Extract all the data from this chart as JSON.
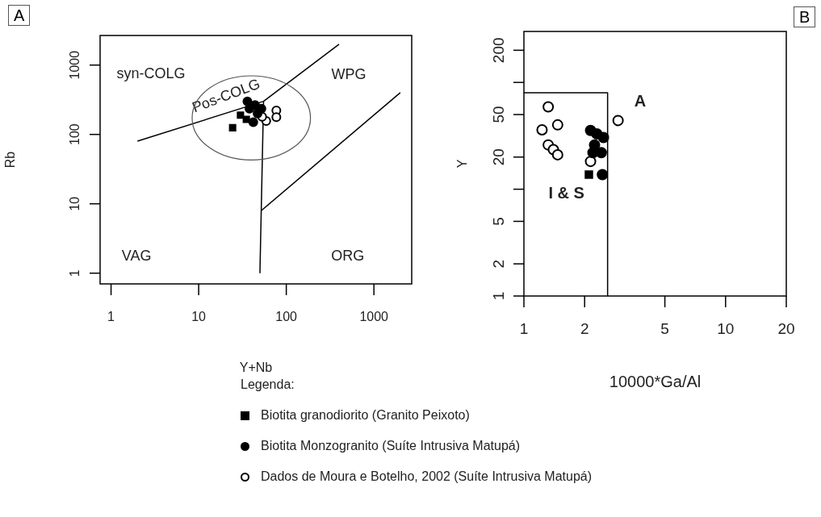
{
  "chart_data": [
    {
      "type": "scatter",
      "title": "A",
      "xlabel": "Y+Nb",
      "ylabel": "Rb",
      "legend_title": "Legenda:",
      "legend": "bottom",
      "log": "xy",
      "grid": false,
      "xlim": [
        0.75,
        2700
      ],
      "ylim": [
        0.73,
        2670
      ],
      "xticks": [
        1,
        10,
        100,
        1000
      ],
      "yticks": [
        1,
        10,
        100,
        1000
      ],
      "series": [
        {
          "name": "Biotita granodiorito (Granito Peixoto)",
          "marker": "square",
          "color": "#000000",
          "x": [
            24.4,
            30,
            35
          ],
          "values": [
            125,
            190,
            165
          ]
        },
        {
          "name": "Biotita Monzogranito (Suíte Intrusiva Matupá)",
          "marker": "circle",
          "color": "#000000",
          "x": [
            36,
            44,
            52,
            38,
            47,
            42
          ],
          "values": [
            300,
            265,
            235,
            235,
            200,
            150
          ]
        },
        {
          "name": "Dados de Moura e Botelho, 2002 (Suíte Intrusiva Matupá)",
          "marker": "circle",
          "color": "#ffffff",
          "x": [
            77,
            77,
            59,
            53
          ],
          "values": [
            222,
            177,
            156,
            180
          ]
        },
        {
          "type": "line",
          "marker": "none",
          "color": "#000000",
          "x": [
            2,
            55,
            400
          ],
          "values": [
            80,
            300,
            2000
          ]
        },
        {
          "type": "line",
          "marker": "none",
          "color": "#000000",
          "x": [
            55,
            50
          ],
          "values": [
            300,
            1
          ]
        },
        {
          "type": "line",
          "marker": "none",
          "color": "#000000",
          "x": [
            52,
            2000
          ],
          "values": [
            8,
            400
          ]
        }
      ],
      "annotations": [
        "syn-COLG",
        "WPG",
        "VAG",
        "ORG",
        "Pos-COLG"
      ]
    },
    {
      "type": "scatter",
      "title": "B",
      "xlabel": "10000*Ga/Al",
      "ylabel": "Y",
      "log": "xy",
      "grid": false,
      "xlim": [
        1,
        20
      ],
      "ylim": [
        1,
        300
      ],
      "xticks": [
        1,
        2,
        5,
        10,
        20
      ],
      "yticks": [
        1,
        2,
        5,
        {
          "value": 10,
          "label": null
        },
        20,
        50,
        {
          "value": 100,
          "label": null
        },
        200
      ],
      "series": [
        {
          "marker": "square",
          "color": "#000000",
          "x": [
            2.1
          ],
          "values": [
            13.7
          ]
        },
        {
          "marker": "circle",
          "color": "#000000",
          "x": [
            2.45,
            2.14,
            2.3,
            2.48,
            2.24,
            2.42,
            2.2
          ],
          "values": [
            13.7,
            35.5,
            33,
            30.5,
            26,
            22,
            22
          ]
        },
        {
          "marker": "circle",
          "color": "#ffffff",
          "x": [
            1.32,
            1.23,
            1.47,
            1.32,
            1.4,
            1.47,
            2.93,
            2.14
          ],
          "values": [
            59,
            36,
            40,
            26,
            23.5,
            21,
            44,
            18.2
          ]
        },
        {
          "type": "line",
          "marker": "none",
          "color": "#000000",
          "x": [
            1,
            2.6,
            2.6
          ],
          "values": [
            80,
            80,
            1
          ]
        }
      ],
      "annotations": [
        "A",
        "I & S"
      ]
    }
  ]
}
